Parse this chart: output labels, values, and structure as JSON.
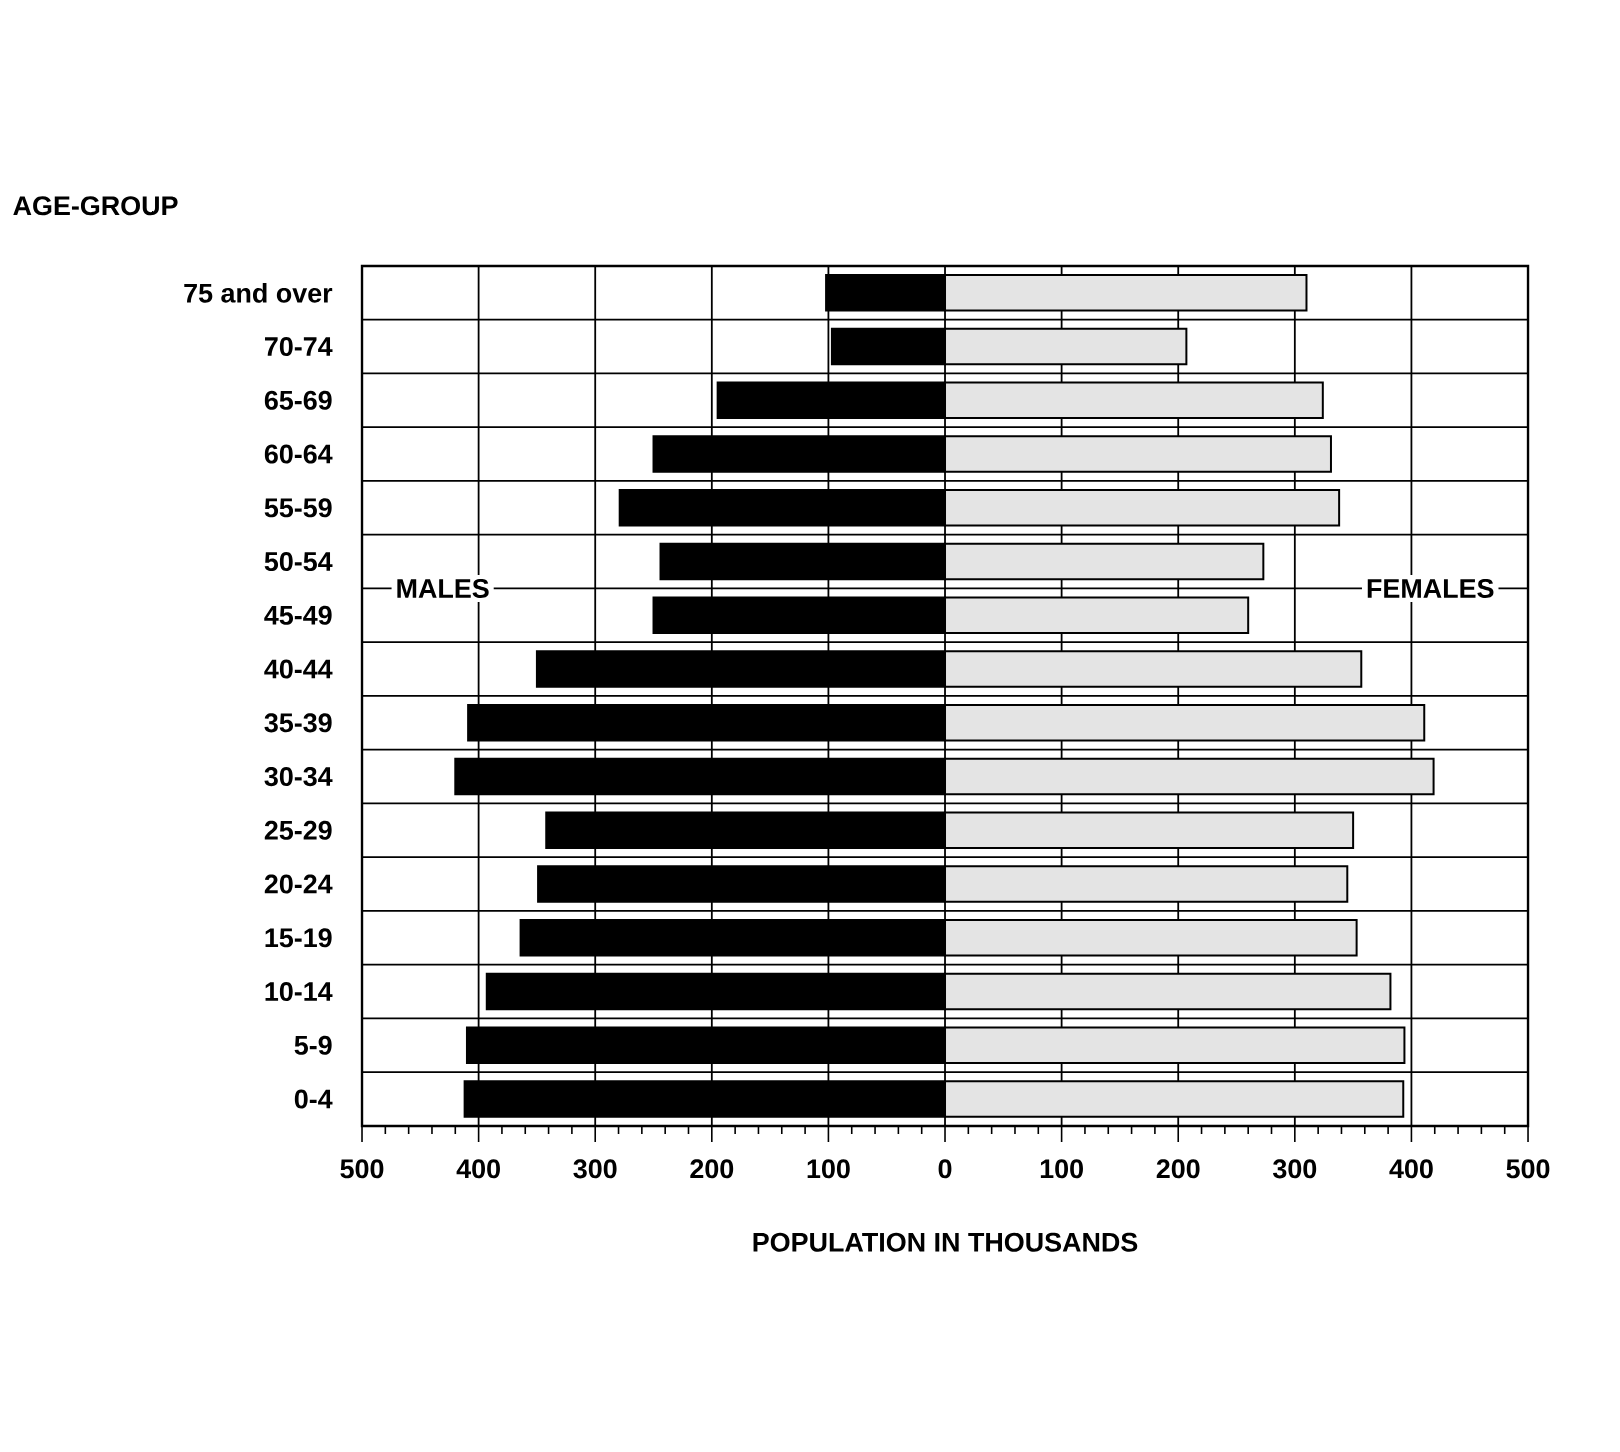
{
  "chart_data": {
    "type": "bar",
    "orientation": "horizontal",
    "xlabel": "POPULATION IN THOUSANDS",
    "ylabel": "AGE-GROUP",
    "categories": [
      "75 and over",
      "70-74",
      "65-69",
      "60-64",
      "55-59",
      "50-54",
      "45-49",
      "40-44",
      "35-39",
      "30-34",
      "25-29",
      "20-24",
      "15-19",
      "10-14",
      "5-9",
      "0-4"
    ],
    "series": [
      {
        "name": "MALES",
        "color": "#000000",
        "values": [
          -102,
          -97,
          -195,
          -250,
          -279,
          -244,
          -250,
          -350,
          -409,
          -420,
          -342,
          -349,
          -364,
          -393,
          -410,
          -412
        ]
      },
      {
        "name": "FEMALES",
        "color": "#e4e4e4",
        "values": [
          310,
          207,
          324,
          331,
          338,
          273,
          260,
          357,
          411,
          419,
          350,
          345,
          353,
          382,
          394,
          393
        ]
      }
    ],
    "xlim": [
      -500,
      500
    ],
    "xticks": [
      {
        "value": -500,
        "label": "500"
      },
      {
        "value": -400,
        "label": "400"
      },
      {
        "value": -300,
        "label": "300"
      },
      {
        "value": -200,
        "label": "200"
      },
      {
        "value": -100,
        "label": "100"
      },
      0,
      100,
      200,
      300,
      400,
      500
    ],
    "stacked": true,
    "grid": true
  }
}
